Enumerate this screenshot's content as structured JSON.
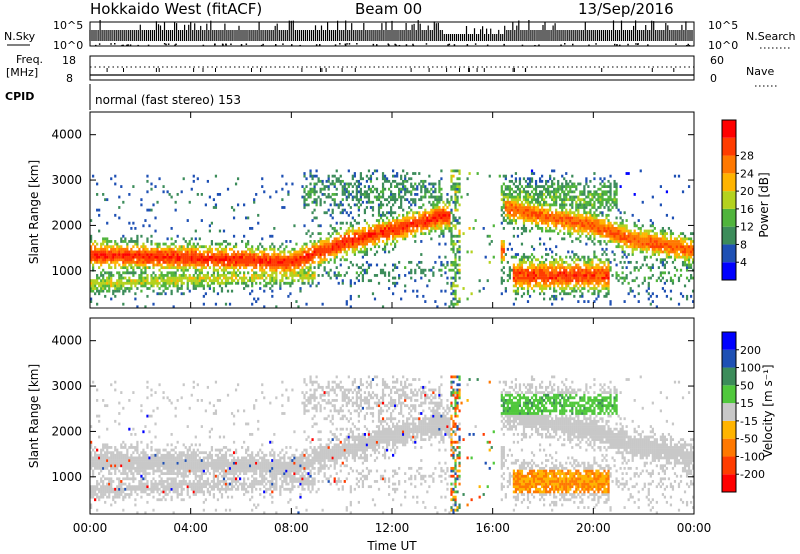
{
  "header": {
    "radar": "Hokkaido West (fitACF)",
    "beam": "Beam 00",
    "date": "13/Sep/2016"
  },
  "top_panels": {
    "nsky_label": "N.Sky",
    "nsky_ticks": [
      "10^5",
      "10^0"
    ],
    "nsearch_label": "N.Search",
    "nsearch_ticks": [
      "10^5",
      "10^0"
    ],
    "freq_label": "Freq.",
    "freq_unit": "[MHz]",
    "freq_ticks": [
      "18",
      "8"
    ],
    "nave_label": "Nave",
    "nave_ticks": [
      "60",
      "0"
    ],
    "cpid_label": "CPID",
    "cpid_text": "normal (fast stereo) 153"
  },
  "colors": {
    "power": [
      "#0000ff",
      "#1e50b4",
      "#3c8c5a",
      "#50b43c",
      "#b4d21e",
      "#ffb400",
      "#ff7800",
      "#ff3c00",
      "#ff0000"
    ],
    "velocity": [
      "#0000ff",
      "#1e50b4",
      "#3c8c5a",
      "#50c83c",
      "#c8c8c8",
      "#ffb400",
      "#ff7800",
      "#ff3c00",
      "#ff0000"
    ]
  },
  "chart_data": [
    {
      "type": "heatmap",
      "name": "power",
      "xlabel": "",
      "ylabel": "Slant Range [km]",
      "yticks": [
        "1000",
        "2000",
        "3000",
        "4000"
      ],
      "ylim": [
        180,
        4500
      ],
      "colorbar_label": "Power [dB]",
      "colorbar_ticks": [
        "4",
        "8",
        "12",
        "16",
        "20",
        "24",
        "28"
      ],
      "colorbar_range": [
        0,
        30
      ],
      "xlim": [
        0,
        24
      ]
    },
    {
      "type": "heatmap",
      "name": "velocity",
      "xlabel": "Time UT",
      "ylabel": "Slant Range [km]",
      "xticks": [
        "00:00",
        "04:00",
        "08:00",
        "12:00",
        "16:00",
        "20:00",
        "00:00"
      ],
      "yticks": [
        "1000",
        "2000",
        "3000",
        "4000"
      ],
      "ylim": [
        180,
        4500
      ],
      "colorbar_label": "Velocity [m s⁻¹]",
      "colorbar_ticks": [
        "200",
        "100",
        "50",
        "15",
        "-15",
        "-50",
        "-100",
        "-200"
      ],
      "xlim": [
        0,
        24
      ]
    }
  ]
}
